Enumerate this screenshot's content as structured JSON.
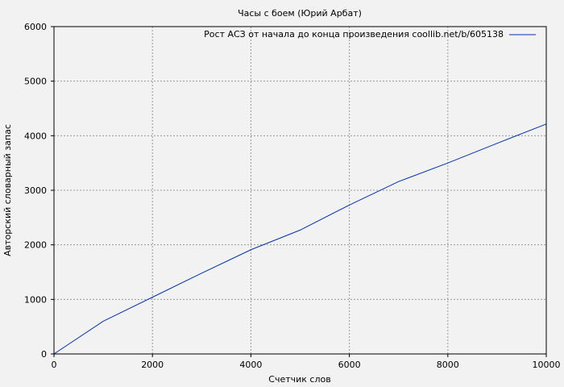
{
  "chart_data": {
    "type": "line",
    "title": "Часы с боем (Юрий Арбат)",
    "xlabel": "Счетчик слов",
    "ylabel": "Авторский словарный запас",
    "xlim": [
      0,
      10000
    ],
    "ylim": [
      0,
      6000
    ],
    "xticks": [
      "0",
      "2000",
      "4000",
      "6000",
      "8000",
      "10000"
    ],
    "yticks": [
      "0",
      "1000",
      "2000",
      "3000",
      "4000",
      "5000",
      "6000"
    ],
    "grid": true,
    "legend_position": "top-right",
    "series": [
      {
        "name": "Рост АСЗ от начала до конца произведения coollib.net/b/605138",
        "color": "#0033aa",
        "x": [
          0,
          1000,
          2000,
          3000,
          4000,
          5000,
          6000,
          7000,
          8000,
          9000,
          10000
        ],
        "y": [
          0,
          600,
          1040,
          1480,
          1910,
          2270,
          2730,
          3160,
          3500,
          3860,
          4215
        ]
      }
    ]
  }
}
